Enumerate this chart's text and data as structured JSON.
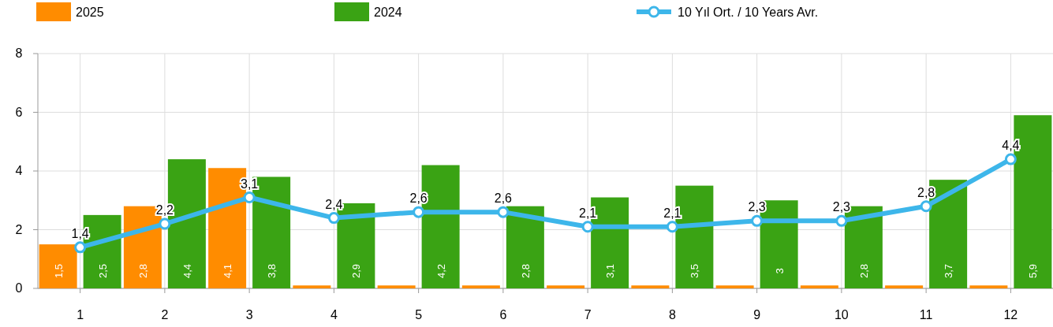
{
  "chart_data": {
    "type": "bar",
    "categories": [
      "1",
      "2",
      "3",
      "4",
      "5",
      "6",
      "7",
      "8",
      "9",
      "10",
      "11",
      "12"
    ],
    "series": [
      {
        "name": "2025",
        "color": "#ff8c00",
        "values": [
          1.5,
          2.8,
          4.1,
          0.1,
          0.1,
          0.1,
          0.1,
          0.1,
          0.1,
          0.1,
          0.1,
          0.1
        ],
        "value_labels": [
          "1,5",
          "2,8",
          "4,1",
          null,
          null,
          null,
          null,
          null,
          null,
          null,
          null,
          null
        ]
      },
      {
        "name": "2024",
        "color": "#3aa314",
        "values": [
          2.5,
          4.4,
          3.8,
          2.9,
          4.2,
          2.8,
          3.1,
          3.5,
          3,
          2.8,
          3.7,
          5.9
        ],
        "value_labels": [
          "2,5",
          "4,4",
          "3,8",
          "2,9",
          "4,2",
          "2,8",
          "3,1",
          "3,5",
          "3",
          "2,8",
          "3,7",
          "5,9"
        ]
      },
      {
        "name": "10 Yıl Ort. / 10 Years Avr.",
        "type": "line",
        "color": "#3db6ea",
        "values": [
          1.4,
          2.2,
          3.1,
          2.4,
          2.6,
          2.6,
          2.1,
          2.1,
          2.3,
          2.3,
          2.8,
          4.4
        ],
        "value_labels": [
          "1,4",
          "2,2",
          "3,1",
          "2,4",
          "2,6",
          "2,6",
          "2,1",
          "2,1",
          "2,3",
          "2,3",
          "2,8",
          "4,4"
        ],
        "marker": "circle"
      }
    ],
    "ylim": [
      0,
      8
    ],
    "yticks": [
      0,
      2,
      4,
      6,
      8
    ],
    "grid": true,
    "legend": "top"
  }
}
